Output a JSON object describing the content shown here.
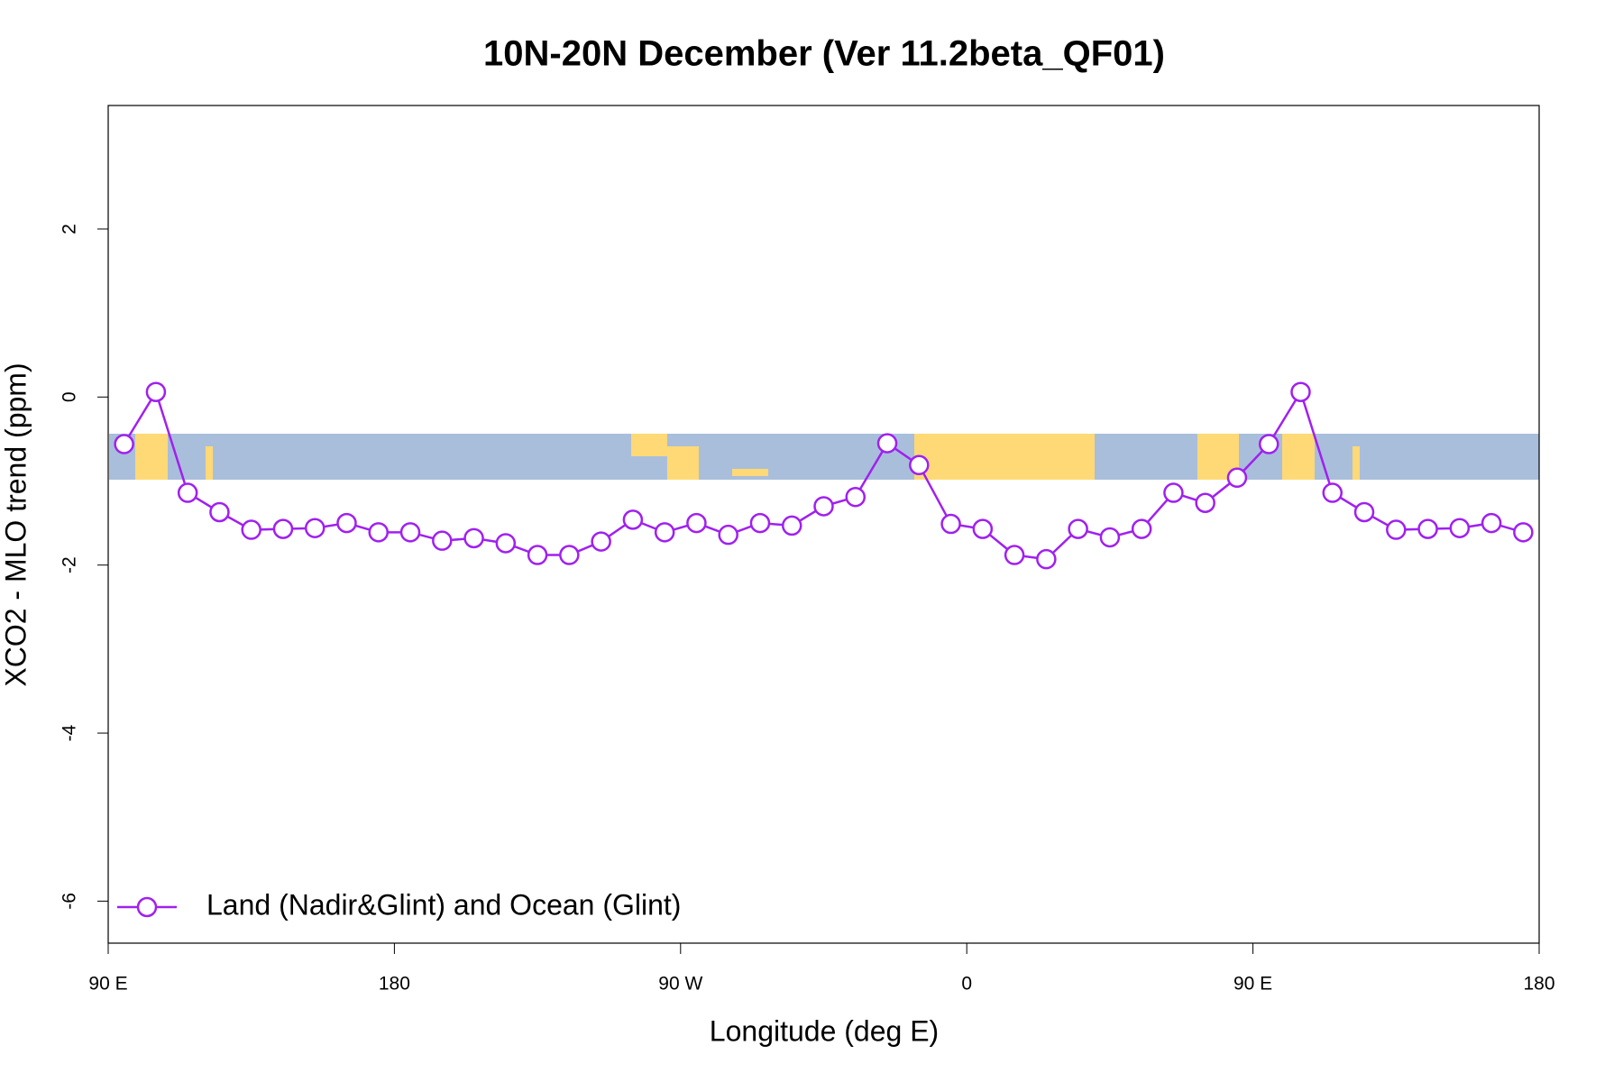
{
  "chart_data": {
    "type": "line",
    "title": "10N-20N December (Ver 11.2beta_QF01)",
    "x_label": "Longitude (deg E)",
    "y_label": "XCO2 - MLO trend (ppm)",
    "x": [
      95,
      105,
      115,
      125,
      135,
      145,
      155,
      165,
      175,
      185,
      195,
      205,
      215,
      225,
      235,
      245,
      255,
      265,
      275,
      285,
      295,
      305,
      315,
      325,
      335,
      345,
      355,
      365,
      375,
      385,
      395,
      405,
      415,
      425,
      435,
      445,
      455,
      465,
      475,
      485,
      495,
      505,
      515,
      525,
      535
    ],
    "series": [
      {
        "name": "Land (Nadir&Glint) and Ocean (Glint)",
        "color": "#a020f0",
        "values": [
          -0.56,
          0.06,
          -1.14,
          -1.37,
          -1.58,
          -1.57,
          -1.56,
          -1.5,
          -1.61,
          -1.61,
          -1.71,
          -1.68,
          -1.74,
          -1.88,
          -1.88,
          -1.72,
          -1.46,
          -1.61,
          -1.5,
          -1.64,
          -1.5,
          -1.53,
          -1.3,
          -1.19,
          -0.55,
          -0.81,
          -1.51,
          -1.57,
          -1.88,
          -1.93,
          -1.57,
          -1.67,
          -1.57,
          -1.14,
          -1.26,
          -0.96,
          -0.56,
          0.06,
          -1.14,
          -1.37,
          -1.58,
          -1.57,
          -1.56,
          -1.5,
          -1.61
        ]
      }
    ],
    "xlim": [
      90,
      540
    ],
    "xticks": [
      {
        "value": 90,
        "label": "90 E"
      },
      180,
      {
        "value": 270,
        "label": "90 W"
      },
      {
        "value": 360,
        "label": "0"
      },
      {
        "value": 450,
        "label": "90 E"
      },
      {
        "value": 540,
        "label": "180"
      }
    ],
    "ylim": [
      -6.5,
      3.47
    ],
    "yticks": [
      -6,
      -4,
      -2,
      0,
      2
    ],
    "legend": "bottomleft"
  }
}
